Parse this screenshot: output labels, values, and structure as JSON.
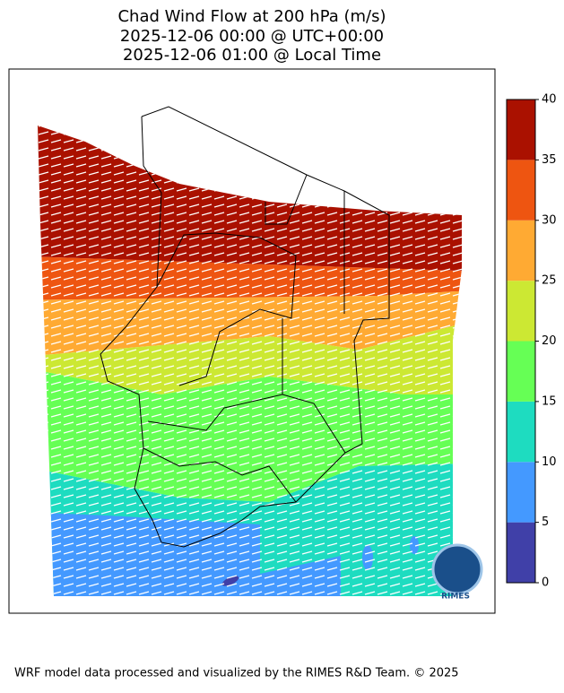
{
  "title": [
    "Chad Wind Flow at 200 hPa (m/s)",
    "2025-12-06 00:00 @ UTC+00:00",
    "2025-12-06 01:00 @ Local Time"
  ],
  "colorbar": {
    "ticks": [
      0,
      5,
      10,
      15,
      20,
      25,
      30,
      35,
      40
    ],
    "colors": [
      "#4040a8",
      "#4499ff",
      "#1edcc0",
      "#66ff55",
      "#cce833",
      "#ffaa33",
      "#ee5511",
      "#aa1100"
    ]
  },
  "logo_text": "RIMES",
  "footer": "WRF model data processed and visualized by the RIMES R&D Team. © 2025"
}
